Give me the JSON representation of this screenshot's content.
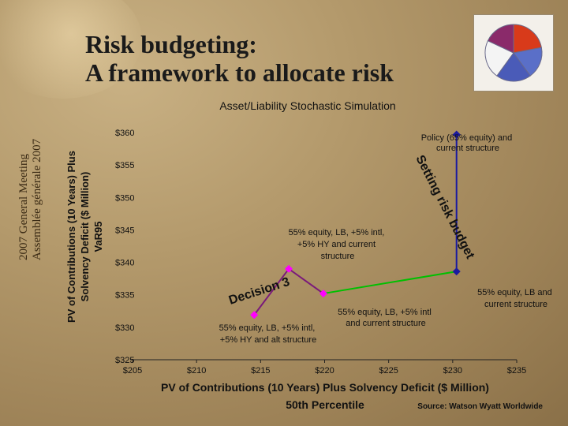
{
  "slide": {
    "title_line1": "Risk budgeting:",
    "title_line2": "A  framework to allocate risk",
    "meeting_line1": "2007 General Meeting",
    "meeting_line2": "Assemblée générale 2007",
    "source": "Source: Watson Wyatt Worldwide"
  },
  "chart_data": {
    "type": "line",
    "title": "Asset/Liability Stochastic Simulation",
    "xlabel_line1": "PV of Contributions (10 Years) Plus Solvency Deficit ($ Million)",
    "xlabel_line2": "50th Percentile",
    "ylabel_lines": [
      "PV of Contributions (10 Years) Plus",
      "Solvency Deficit ($ Million)",
      "VaR95"
    ],
    "xlim": [
      205,
      235
    ],
    "ylim": [
      325,
      360
    ],
    "xticks": [
      205,
      210,
      215,
      220,
      225,
      230,
      235
    ],
    "yticks": [
      325,
      330,
      335,
      340,
      345,
      350,
      355,
      360
    ],
    "xtick_labels": [
      "$205",
      "$210",
      "$215",
      "$220",
      "$225",
      "$230",
      "$235"
    ],
    "ytick_labels": [
      "$325",
      "$330",
      "$335",
      "$340",
      "$345",
      "$350",
      "$355",
      "$360"
    ],
    "grid": false,
    "points": [
      {
        "x": 230.3,
        "y": 359.7,
        "label": "Policy (65% equity) and current structure",
        "color": "#1a1aa0"
      },
      {
        "x": 230.3,
        "y": 338.6,
        "label": "55% equity, LB and current structure",
        "color": "#1a1aa0"
      },
      {
        "x": 219.9,
        "y": 335.2,
        "label": "55% equity, LB, +5% intl and current structure",
        "color": "#ff00ff"
      },
      {
        "x": 217.2,
        "y": 339.0,
        "label": "55% equity, LB, +5% intl, +5% HY and current structure",
        "color": "#ff00ff"
      },
      {
        "x": 214.5,
        "y": 331.9,
        "label": "55% equity, LB, +5% intl, +5% HY and alt structure",
        "color": "#ff00ff"
      }
    ],
    "segments": [
      {
        "from": 0,
        "to": 1,
        "color": "#1a1aa0"
      },
      {
        "from": 1,
        "to": 2,
        "color": "#00c000"
      },
      {
        "from": 2,
        "to": 3,
        "color": "#7a1a7a"
      },
      {
        "from": 3,
        "to": 4,
        "color": "#7a1a7a"
      }
    ],
    "annotations": {
      "setting_risk_budget": "Setting risk budget",
      "decision": "Decision 3"
    }
  },
  "logo": {
    "slices": [
      {
        "value": 22,
        "color": "#d83a1a"
      },
      {
        "value": 18,
        "color": "#5a6fc8"
      },
      {
        "value": 20,
        "color": "#4a5bb8"
      },
      {
        "value": 22,
        "color": "#f4f4f4"
      },
      {
        "value": 18,
        "color": "#8a2a6a"
      }
    ]
  }
}
